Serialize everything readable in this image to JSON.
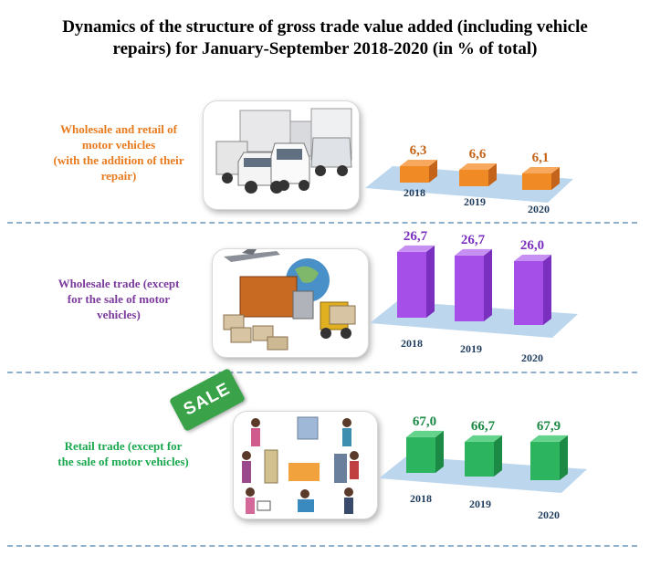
{
  "title_line1": "Dynamics of the structure of gross trade value added (including vehicle",
  "title_line2": "repairs) for January-September 2018-2020 (in % of total)",
  "chart_data": [
    {
      "type": "bar",
      "label_lines": [
        "Wholesale and retail of",
        "motor vehicles",
        "(with the addition of their",
        "repair)"
      ],
      "categories": [
        "2018",
        "2019",
        "2020"
      ],
      "values": [
        6.3,
        6.6,
        6.1
      ],
      "value_labels": [
        "6,3",
        "6,6",
        "6,1"
      ],
      "color": "#f08a24",
      "color_dark": "#c4641a",
      "color_top": "#f7a85c"
    },
    {
      "type": "bar",
      "label_lines": [
        "Wholesale trade (except",
        "for the sale of motor",
        "vehicles)"
      ],
      "categories": [
        "2018",
        "2019",
        "2020"
      ],
      "values": [
        26.7,
        26.7,
        26.0
      ],
      "value_labels": [
        "26,7",
        "26,7",
        "26,0"
      ],
      "color": "#a64ee8",
      "color_dark": "#7a2fbf",
      "color_top": "#c690f2"
    },
    {
      "type": "bar",
      "label_lines": [
        "Retail trade (except for",
        "the sale of motor vehicles)"
      ],
      "categories": [
        "2018",
        "2019",
        "2020"
      ],
      "values": [
        67.0,
        66.7,
        67.9
      ],
      "value_labels": [
        "67,0",
        "66,7",
        "67,9"
      ],
      "color": "#2cb55e",
      "color_dark": "#1c8a45",
      "color_top": "#63d28a"
    }
  ],
  "label_colors": [
    "#e87a1e",
    "#7b3a9c",
    "#1aa84e"
  ],
  "platform_color": "#bcd6ee",
  "year_color": "#1f3c5c",
  "sale_sign": "SALE"
}
